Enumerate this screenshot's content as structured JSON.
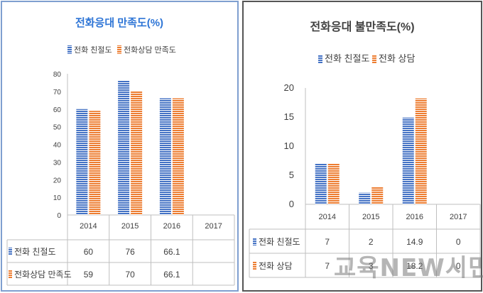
{
  "chart_data": [
    {
      "type": "bar",
      "title": "전화응대 만족도(%)",
      "categories": [
        "2014",
        "2015",
        "2016",
        "2017"
      ],
      "series": [
        {
          "name": "전화 친절도",
          "values": [
            60,
            76,
            66.1,
            null
          ],
          "labels": [
            "60",
            "76",
            "66.1",
            ""
          ]
        },
        {
          "name": "전화상담 만족도",
          "values": [
            59,
            70,
            66.1,
            null
          ],
          "labels": [
            "59",
            "70",
            "66.1",
            ""
          ]
        }
      ],
      "yticks": [
        "0",
        "10",
        "20",
        "30",
        "40",
        "50",
        "60",
        "70",
        "80"
      ],
      "ylim": [
        0,
        80
      ],
      "legend": "top",
      "data_table": true
    },
    {
      "type": "bar",
      "title": "전화응대 불만족도(%)",
      "categories": [
        "2014",
        "2015",
        "2016",
        "2017"
      ],
      "series": [
        {
          "name": "전화 친절도",
          "values": [
            7,
            2,
            14.9,
            0
          ],
          "labels": [
            "7",
            "2",
            "14.9",
            "0"
          ]
        },
        {
          "name": "전화 상담",
          "values": [
            7,
            3,
            18.2,
            0
          ],
          "labels": [
            "7",
            "3",
            "18.2",
            "0"
          ]
        }
      ],
      "yticks": [
        "0",
        "5",
        "10",
        "15",
        "20"
      ],
      "ylim": [
        0,
        20
      ],
      "legend": "top",
      "data_table": true
    }
  ],
  "colors": {
    "series1": "#4472c4",
    "series2": "#ed7d31",
    "title_left": "#2e75d6",
    "text": "#404040"
  },
  "watermark": "교육NEW시민"
}
